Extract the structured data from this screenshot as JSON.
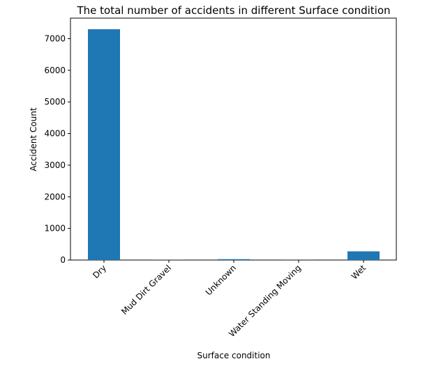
{
  "chart_data": {
    "type": "bar",
    "title": "The total number of accidents in different Surface condition",
    "xlabel": "Surface condition",
    "ylabel": "Accident Count",
    "categories": [
      "Dry",
      "Mud Dirt Gravel",
      "Unknown",
      "Water Standing Moving",
      "Wet"
    ],
    "values": [
      7300,
      3,
      28,
      2,
      275
    ],
    "ylim": [
      0,
      7650
    ],
    "yticks": [
      0,
      1000,
      2000,
      3000,
      4000,
      5000,
      6000,
      7000
    ],
    "grid": false,
    "bar_color": "#1f77b4"
  }
}
